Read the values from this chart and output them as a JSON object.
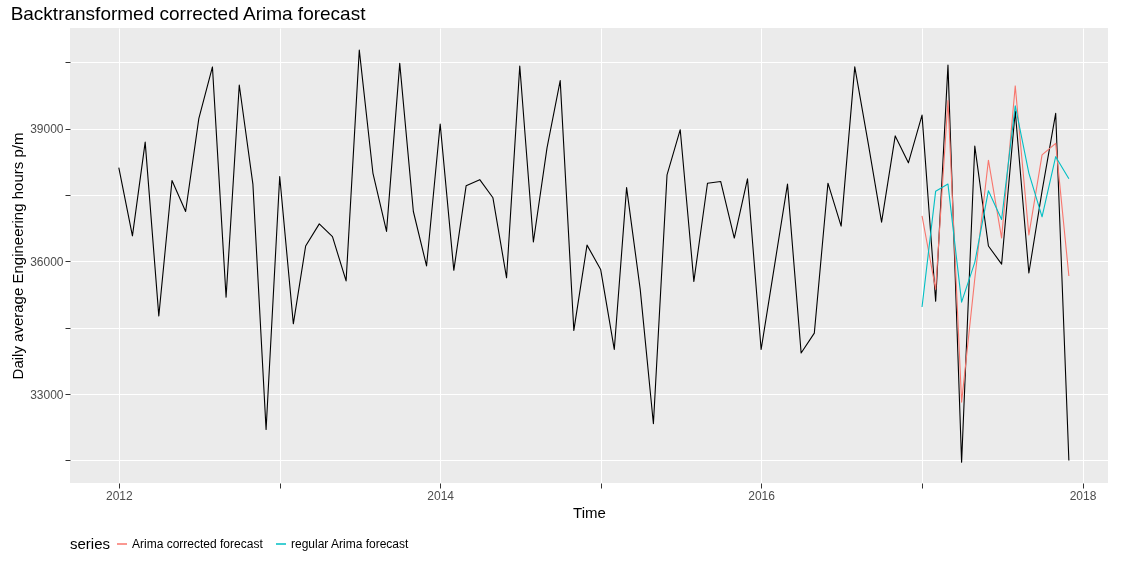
{
  "chart_data": {
    "type": "line",
    "title": "Backtransformed corrected Arima forecast",
    "xlabel": "Time",
    "ylabel": "Daily average Engineering hours p/m",
    "legend_title": "series",
    "legend": "bottom",
    "grid": true,
    "line_style": "solid",
    "marker": "none",
    "xlim": [
      "2011-09-12",
      "2018-02-28"
    ],
    "xticks": [
      {
        "value": "2012-01-01",
        "label": "2012"
      },
      {
        "value": "2013-01-01",
        "label": null
      },
      {
        "value": "2014-01-01",
        "label": "2014"
      },
      {
        "value": "2015-01-01",
        "label": null
      },
      {
        "value": "2016-01-01",
        "label": "2016"
      },
      {
        "value": "2017-01-01",
        "label": null
      },
      {
        "value": "2018-01-01",
        "label": "2018"
      }
    ],
    "ylim": [
      30990,
      41280
    ],
    "yticks": [
      {
        "value": 31500,
        "label": null
      },
      33000,
      {
        "value": 34500,
        "label": null
      },
      36000,
      {
        "value": 37500,
        "label": null
      },
      39000,
      {
        "value": 40500,
        "label": null
      }
    ],
    "series": [
      {
        "color": "#000000",
        "x": [
          "2012-01",
          "2012-02",
          "2012-03",
          "2012-04",
          "2012-05",
          "2012-06",
          "2012-07",
          "2012-08",
          "2012-09",
          "2012-10",
          "2012-11",
          "2012-12",
          "2013-01",
          "2013-02",
          "2013-03",
          "2013-04",
          "2013-05",
          "2013-06",
          "2013-07",
          "2013-08",
          "2013-09",
          "2013-10",
          "2013-11",
          "2013-12",
          "2014-01",
          "2014-02",
          "2014-03",
          "2014-04",
          "2014-05",
          "2014-06",
          "2014-07",
          "2014-08",
          "2014-09",
          "2014-10",
          "2014-11",
          "2014-12",
          "2015-01",
          "2015-02",
          "2015-03",
          "2015-04",
          "2015-05",
          "2015-06",
          "2015-07",
          "2015-08",
          "2015-09",
          "2015-10",
          "2015-11",
          "2015-12",
          "2016-01",
          "2016-02",
          "2016-03",
          "2016-04",
          "2016-05",
          "2016-06",
          "2016-07",
          "2016-08",
          "2016-09",
          "2016-10",
          "2016-11",
          "2016-12",
          "2017-01",
          "2017-02",
          "2017-03",
          "2017-04",
          "2017-05",
          "2017-06",
          "2017-07",
          "2017-08",
          "2017-09",
          "2017-10",
          "2017-11",
          "2017-12"
        ],
        "values": [
          38120,
          36580,
          38700,
          34770,
          37830,
          37130,
          39230,
          40400,
          35190,
          39990,
          37750,
          32200,
          37920,
          34590,
          36350,
          36850,
          36560,
          35560,
          40780,
          38000,
          36680,
          40480,
          37130,
          35900,
          39110,
          35800,
          37710,
          37850,
          37440,
          35630,
          40420,
          36440,
          38570,
          40090,
          34440,
          36370,
          35820,
          34010,
          37670,
          35370,
          32330,
          37960,
          38980,
          35550,
          37770,
          37810,
          36530,
          37870,
          34010,
          35940,
          37750,
          33930,
          34380,
          37770,
          36800,
          40400,
          38650,
          36890,
          38840,
          38230,
          39310,
          35100,
          40440,
          31460,
          38610,
          36350,
          35940,
          39400,
          35740,
          37590,
          39350,
          31500
        ]
      },
      {
        "name": "Arima corrected forecast",
        "color": "#f8766d",
        "x": [
          "2017-01",
          "2017-02",
          "2017-03",
          "2017-04",
          "2017-05",
          "2017-06",
          "2017-07",
          "2017-08",
          "2017-09",
          "2017-10",
          "2017-11",
          "2017-12"
        ],
        "values": [
          37030,
          35370,
          39640,
          32820,
          35610,
          38290,
          36530,
          39970,
          36600,
          38410,
          38670,
          35670
        ]
      },
      {
        "name": "regular Arima forecast",
        "color": "#00bfc4",
        "x": [
          "2017-01",
          "2017-02",
          "2017-03",
          "2017-04",
          "2017-05",
          "2017-06",
          "2017-07",
          "2017-08",
          "2017-09",
          "2017-10",
          "2017-11",
          "2017-12"
        ],
        "values": [
          34970,
          37590,
          37750,
          35080,
          35980,
          37600,
          36950,
          39520,
          38000,
          37010,
          38370,
          37870
        ]
      }
    ]
  }
}
